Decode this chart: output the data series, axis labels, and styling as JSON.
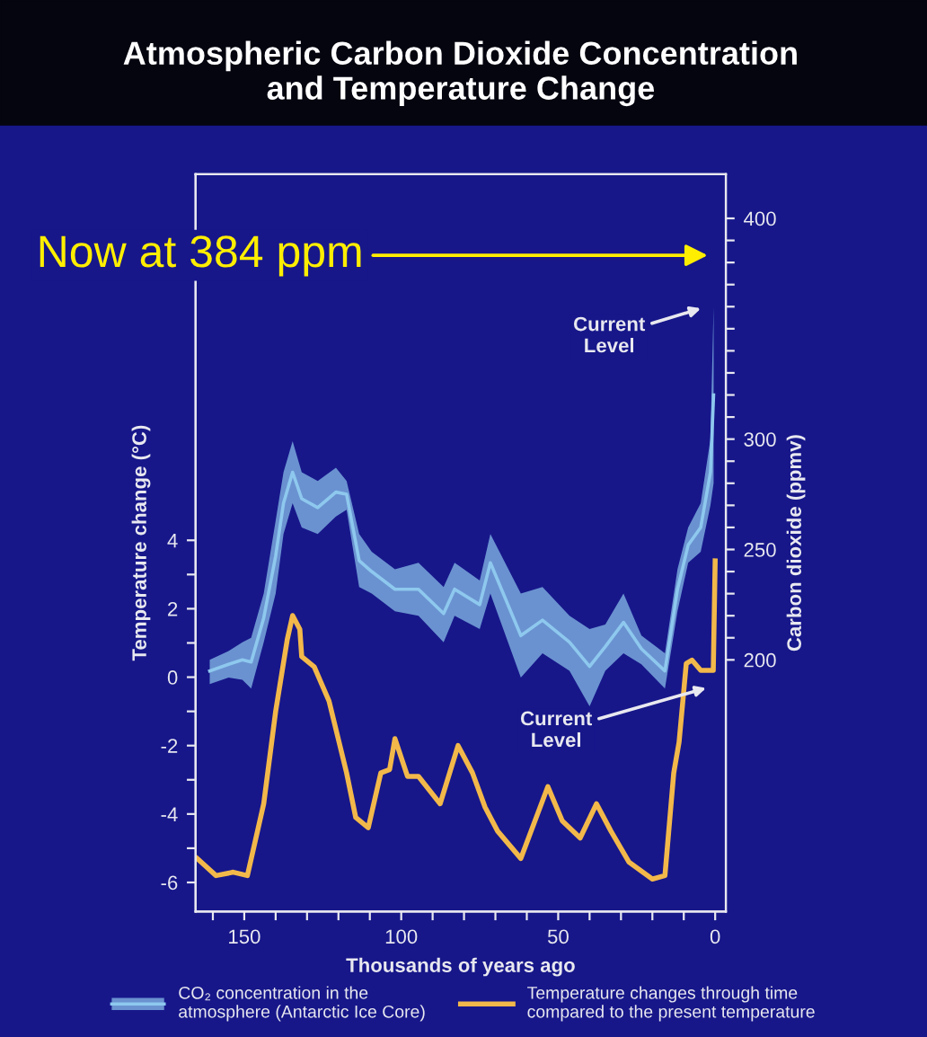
{
  "chart_data": {
    "type": "line",
    "title": "Atmospheric Carbon Dioxide Concentration\nand Temperature Change",
    "xlabel": "Thousands of years ago",
    "ylabel": "Temperature change (°C)",
    "y2label": "Carbon dioxide (ppmv)",
    "xlim": [
      165.5,
      -3.4
    ],
    "xticks": [
      {
        "value": 160,
        "label": null
      },
      150,
      {
        "value": 140,
        "label": null
      },
      {
        "value": 130,
        "label": null
      },
      {
        "value": 120,
        "label": null
      },
      {
        "value": 110,
        "label": null
      },
      100,
      {
        "value": 90,
        "label": null
      },
      {
        "value": 80,
        "label": null
      },
      {
        "value": 70,
        "label": null
      },
      {
        "value": 60,
        "label": null
      },
      50,
      {
        "value": 40,
        "label": null
      },
      {
        "value": 30,
        "label": null
      },
      {
        "value": 20,
        "label": null
      },
      {
        "value": 10,
        "label": null
      },
      0
    ],
    "ylim": [
      -6.85,
      14.7
    ],
    "yticks": [
      -6,
      {
        "value": -5,
        "label": null
      },
      -4,
      {
        "value": -3,
        "label": null
      },
      -2,
      {
        "value": -1,
        "label": null
      },
      0,
      {
        "value": 1,
        "label": null
      },
      2,
      {
        "value": 3,
        "label": null
      },
      4
    ],
    "y2lim": [
      86,
      420
    ],
    "y2ticks": [
      200,
      {
        "value": 210,
        "label": null
      },
      {
        "value": 220,
        "label": null
      },
      {
        "value": 230,
        "label": null
      },
      {
        "value": 240,
        "label": null
      },
      250,
      {
        "value": 260,
        "label": null
      },
      {
        "value": 270,
        "label": null
      },
      {
        "value": 280,
        "label": null
      },
      {
        "value": 290,
        "label": null
      },
      300,
      {
        "value": 310,
        "label": null
      },
      {
        "value": 320,
        "label": null
      },
      {
        "value": 330,
        "label": null
      },
      {
        "value": 340,
        "label": null
      },
      {
        "value": 350,
        "label": null
      },
      {
        "value": 360,
        "label": null
      },
      {
        "value": 370,
        "label": null
      },
      {
        "value": 380,
        "label": null
      },
      {
        "value": 390,
        "label": null
      },
      400
    ],
    "grid": false,
    "legend": "bottom",
    "series": [
      {
        "name": "CO₂ concentration in the\natmosphere (Antarctic Ice Core)",
        "type": "line",
        "axis": "y2",
        "color": "#8ec8ee",
        "x": [
          161,
          155,
          150.6,
          147.8,
          143.8,
          140,
          137.5,
          134.6,
          131.7,
          126.6,
          120.8,
          117.4,
          113.4,
          109.4,
          102,
          94.5,
          86.5,
          83,
          75,
          71.6,
          61.9,
          55,
          46.4,
          40,
          35,
          29.2,
          23.5,
          16,
          12,
          8.6,
          4.6,
          1.5,
          0.5
        ],
        "lower": [
          189,
          192,
          191,
          187,
          208,
          230,
          257,
          271,
          260,
          257,
          265,
          268,
          233,
          230,
          222,
          220,
          208,
          220,
          214,
          230,
          192,
          203,
          195,
          179,
          195,
          203,
          198,
          187,
          222,
          244,
          249,
          270,
          280
        ],
        "values": [
          195,
          198,
          200,
          199,
          219,
          247,
          271,
          285,
          273,
          269,
          276,
          275,
          245,
          240,
          232,
          232,
          221,
          232,
          225,
          244,
          211,
          218,
          208,
          197,
          206,
          217,
          205,
          195,
          232,
          252,
          260,
          285,
          320
        ],
        "upper": [
          200,
          204,
          208,
          210,
          230,
          263,
          285,
          299,
          285,
          281,
          287,
          281,
          257,
          249,
          241,
          244,
          233,
          244,
          236,
          257,
          230,
          233,
          220,
          214,
          216,
          230,
          211,
          203,
          241,
          260,
          271,
          300,
          360
        ]
      },
      {
        "name": "Temperature changes through time\ncompared to the present temperature",
        "color": "#f2b84a",
        "x": [
          165,
          159,
          153.5,
          149,
          143.8,
          140,
          136.3,
          134.6,
          132.3,
          131.7,
          127.7,
          123,
          117.4,
          114.5,
          110.5,
          106.5,
          103.7,
          102,
          98,
          94.5,
          87.6,
          81.9,
          77.3,
          73.3,
          69.3,
          61.9,
          53.3,
          48.7,
          43,
          37.8,
          33.2,
          27.5,
          20,
          16,
          13.2,
          11.5,
          9.2,
          7.4,
          4.6,
          0.6,
          0
        ],
        "values": [
          -5.3,
          -5.8,
          -5.7,
          -5.8,
          -3.7,
          -1.0,
          1.1,
          1.8,
          1.4,
          0.6,
          0.3,
          -0.7,
          -2.8,
          -4.1,
          -4.4,
          -2.8,
          -2.7,
          -1.8,
          -2.9,
          -2.9,
          -3.7,
          -2.0,
          -2.8,
          -3.8,
          -4.5,
          -5.3,
          -3.2,
          -4.2,
          -4.7,
          -3.7,
          -4.5,
          -5.4,
          -5.9,
          -5.8,
          -2.8,
          -1.9,
          0.4,
          0.5,
          0.2,
          0.2,
          3.4
        ]
      }
    ],
    "annotations": [
      "Now at 384 ppm",
      "Current\nLevel",
      "Current\nLevel"
    ]
  }
}
